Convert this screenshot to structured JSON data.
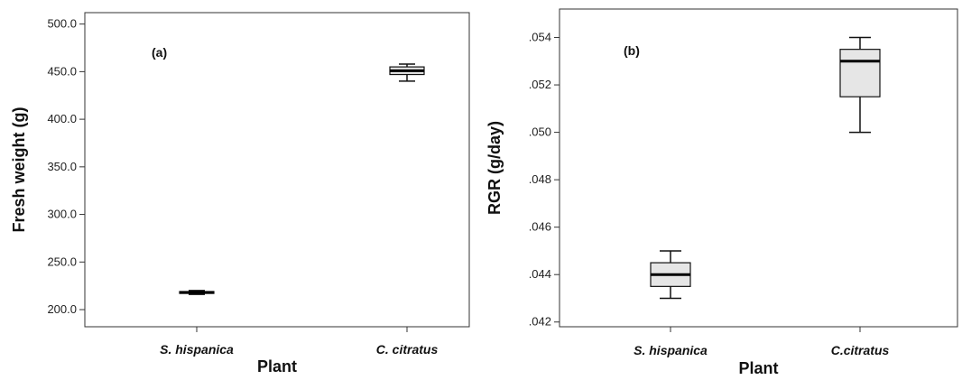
{
  "chart_data": [
    {
      "type": "boxplot",
      "panel_label": "(a)",
      "xlabel": "Plant",
      "ylabel": "Fresh weight (g)",
      "categories": [
        "S. hispanica",
        "C. citratus"
      ],
      "ylim": [
        182,
        512
      ],
      "yticks": [
        200.0,
        250.0,
        300.0,
        350.0,
        400.0,
        450.0,
        500.0
      ],
      "ytick_labels": [
        "200.0",
        "250.0",
        "300.0",
        "350.0",
        "400.0",
        "450.0",
        "500.0"
      ],
      "boxes": [
        {
          "category": "S. hispanica",
          "min": 216,
          "q1": 217,
          "median": 218,
          "q3": 219,
          "max": 220
        },
        {
          "category": "C. citratus",
          "min": 440,
          "q1": 447,
          "median": 451,
          "q3": 455,
          "max": 458
        }
      ],
      "box_fill": "#e6e6e6"
    },
    {
      "type": "boxplot",
      "panel_label": "(b)",
      "xlabel": "Plant",
      "ylabel": "RGR (g/day)",
      "categories": [
        "S. hispanica",
        "C.citratus"
      ],
      "ylim": [
        0.0418,
        0.0552
      ],
      "yticks": [
        0.042,
        0.044,
        0.046,
        0.048,
        0.05,
        0.052,
        0.054
      ],
      "ytick_labels": [
        ".042",
        ".044",
        ".046",
        ".048",
        ".050",
        ".052",
        ".054"
      ],
      "boxes": [
        {
          "category": "S. hispanica",
          "min": 0.043,
          "q1": 0.0435,
          "median": 0.044,
          "q3": 0.0445,
          "max": 0.045
        },
        {
          "category": "C.citratus",
          "min": 0.05,
          "q1": 0.0515,
          "median": 0.053,
          "q3": 0.0535,
          "max": 0.054
        }
      ],
      "box_fill": "#e6e6e6"
    }
  ]
}
